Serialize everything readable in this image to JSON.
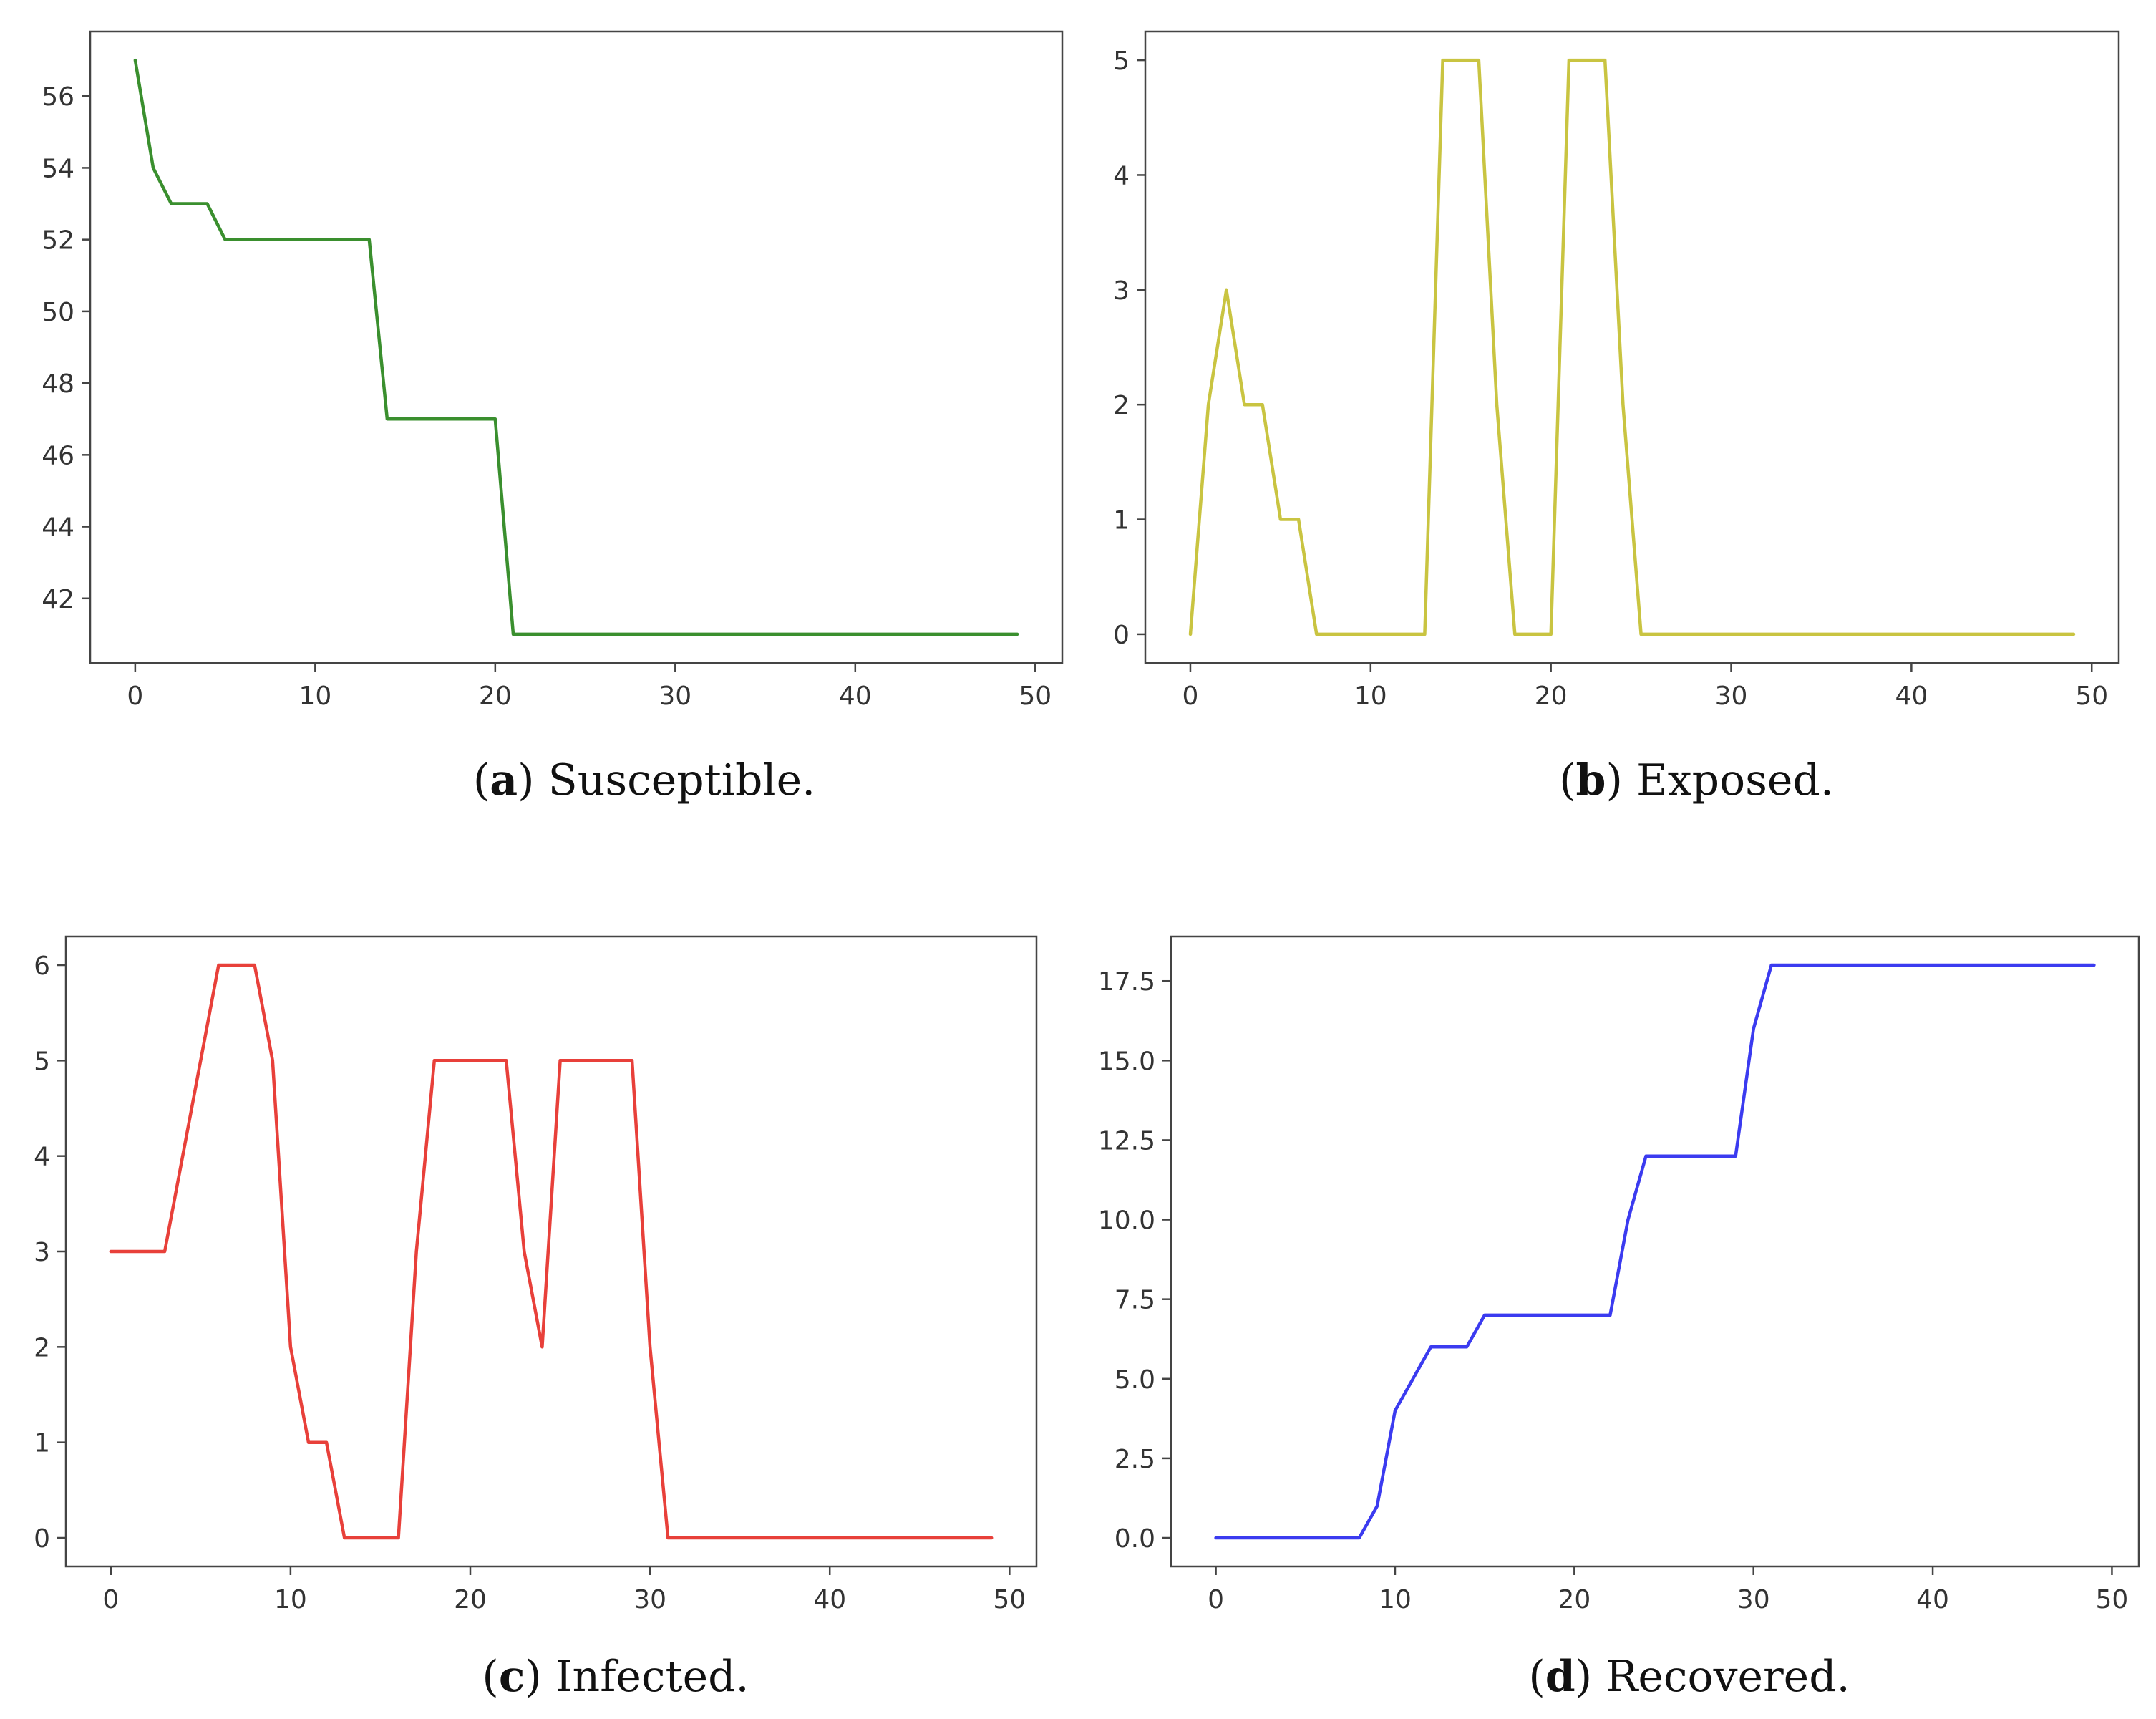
{
  "colors": {
    "susceptible": "#3a8f2e",
    "exposed": "#c9c441",
    "infected": "#e8403a",
    "recovered": "#3b3bf0",
    "axis": "#444444",
    "text": "#333333"
  },
  "chart_data": [
    {
      "type": "line",
      "id": "a",
      "caption_letter": "a",
      "caption_text": "Susceptible.",
      "color_key": "susceptible",
      "xlim": [
        -2.5,
        51.5
      ],
      "ylim": [
        40.2,
        57.8
      ],
      "xticks": [
        0,
        10,
        20,
        30,
        40,
        50
      ],
      "xtick_labels": [
        "0",
        "10",
        "20",
        "30",
        "40",
        "50"
      ],
      "yticks": [
        42,
        44,
        46,
        48,
        50,
        52,
        54,
        56
      ],
      "ytick_labels": [
        "42",
        "44",
        "46",
        "48",
        "50",
        "52",
        "54",
        "56"
      ],
      "x": [
        0,
        1,
        2,
        3,
        4,
        5,
        6,
        7,
        8,
        9,
        10,
        11,
        12,
        13,
        14,
        15,
        16,
        17,
        18,
        19,
        20,
        21,
        22,
        23,
        24,
        25,
        26,
        27,
        28,
        29,
        30,
        31,
        32,
        33,
        34,
        35,
        36,
        37,
        38,
        39,
        40,
        41,
        42,
        43,
        44,
        45,
        46,
        47,
        48,
        49
      ],
      "y": [
        57,
        54,
        53,
        53,
        53,
        52,
        52,
        52,
        52,
        52,
        52,
        52,
        52,
        52,
        47,
        47,
        47,
        47,
        47,
        47,
        47,
        41,
        41,
        41,
        41,
        41,
        41,
        41,
        41,
        41,
        41,
        41,
        41,
        41,
        41,
        41,
        41,
        41,
        41,
        41,
        41,
        41,
        41,
        41,
        41,
        41,
        41,
        41,
        41,
        41
      ]
    },
    {
      "type": "line",
      "id": "b",
      "caption_letter": "b",
      "caption_text": "Exposed.",
      "color_key": "exposed",
      "xlim": [
        -2.5,
        51.5
      ],
      "ylim": [
        -0.25,
        5.25
      ],
      "xticks": [
        0,
        10,
        20,
        30,
        40,
        50
      ],
      "xtick_labels": [
        "0",
        "10",
        "20",
        "30",
        "40",
        "50"
      ],
      "yticks": [
        0,
        1,
        2,
        3,
        4,
        5
      ],
      "ytick_labels": [
        "0",
        "1",
        "2",
        "3",
        "4",
        "5"
      ],
      "x": [
        0,
        1,
        2,
        3,
        4,
        5,
        6,
        7,
        8,
        9,
        10,
        11,
        12,
        13,
        14,
        15,
        16,
        17,
        18,
        19,
        20,
        21,
        22,
        23,
        24,
        25,
        26,
        27,
        28,
        29,
        30,
        31,
        32,
        33,
        34,
        35,
        36,
        37,
        38,
        39,
        40,
        41,
        42,
        43,
        44,
        45,
        46,
        47,
        48,
        49
      ],
      "y": [
        0,
        2,
        3,
        2,
        2,
        1,
        1,
        0,
        0,
        0,
        0,
        0,
        0,
        0,
        5,
        5,
        5,
        2,
        0,
        0,
        0,
        5,
        5,
        5,
        2,
        0,
        0,
        0,
        0,
        0,
        0,
        0,
        0,
        0,
        0,
        0,
        0,
        0,
        0,
        0,
        0,
        0,
        0,
        0,
        0,
        0,
        0,
        0,
        0,
        0
      ]
    },
    {
      "type": "line",
      "id": "c",
      "caption_letter": "c",
      "caption_text": "Infected.",
      "color_key": "infected",
      "xlim": [
        -2.5,
        51.5
      ],
      "ylim": [
        -0.3,
        6.3
      ],
      "xticks": [
        0,
        10,
        20,
        30,
        40,
        50
      ],
      "xtick_labels": [
        "0",
        "10",
        "20",
        "30",
        "40",
        "50"
      ],
      "yticks": [
        0,
        1,
        2,
        3,
        4,
        5,
        6
      ],
      "ytick_labels": [
        "0",
        "1",
        "2",
        "3",
        "4",
        "5",
        "6"
      ],
      "x": [
        0,
        1,
        2,
        3,
        4,
        5,
        6,
        7,
        8,
        9,
        10,
        11,
        12,
        13,
        14,
        15,
        16,
        17,
        18,
        19,
        20,
        21,
        22,
        23,
        24,
        25,
        26,
        27,
        28,
        29,
        30,
        31,
        32,
        33,
        34,
        35,
        36,
        37,
        38,
        39,
        40,
        41,
        42,
        43,
        44,
        45,
        46,
        47,
        48,
        49
      ],
      "y": [
        3,
        3,
        3,
        3,
        4,
        5,
        6,
        6,
        6,
        5,
        2,
        1,
        1,
        0,
        0,
        0,
        0,
        3,
        5,
        5,
        5,
        5,
        5,
        3,
        2,
        5,
        5,
        5,
        5,
        5,
        2,
        0,
        0,
        0,
        0,
        0,
        0,
        0,
        0,
        0,
        0,
        0,
        0,
        0,
        0,
        0,
        0,
        0,
        0,
        0
      ]
    },
    {
      "type": "line",
      "id": "d",
      "caption_letter": "d",
      "caption_text": "Recovered.",
      "color_key": "recovered",
      "xlim": [
        -2.5,
        51.5
      ],
      "ylim": [
        -0.9,
        18.9
      ],
      "xticks": [
        0,
        10,
        20,
        30,
        40,
        50
      ],
      "xtick_labels": [
        "0",
        "10",
        "20",
        "30",
        "40",
        "50"
      ],
      "yticks": [
        0.0,
        2.5,
        5.0,
        7.5,
        10.0,
        12.5,
        15.0,
        17.5
      ],
      "ytick_labels": [
        "0.0",
        "2.5",
        "5.0",
        "7.5",
        "10.0",
        "12.5",
        "15.0",
        "17.5"
      ],
      "x": [
        0,
        1,
        2,
        3,
        4,
        5,
        6,
        7,
        8,
        9,
        10,
        11,
        12,
        13,
        14,
        15,
        16,
        17,
        18,
        19,
        20,
        21,
        22,
        23,
        24,
        25,
        26,
        27,
        28,
        29,
        30,
        31,
        32,
        33,
        34,
        35,
        36,
        37,
        38,
        39,
        40,
        41,
        42,
        43,
        44,
        45,
        46,
        47,
        48,
        49
      ],
      "y": [
        0,
        0,
        0,
        0,
        0,
        0,
        0,
        0,
        0,
        1,
        4,
        5,
        6,
        6,
        6,
        7,
        7,
        7,
        7,
        7,
        7,
        7,
        7,
        10,
        12,
        12,
        12,
        12,
        12,
        12,
        16,
        18,
        18,
        18,
        18,
        18,
        18,
        18,
        18,
        18,
        18,
        18,
        18,
        18,
        18,
        18,
        18,
        18,
        18,
        18
      ]
    }
  ]
}
